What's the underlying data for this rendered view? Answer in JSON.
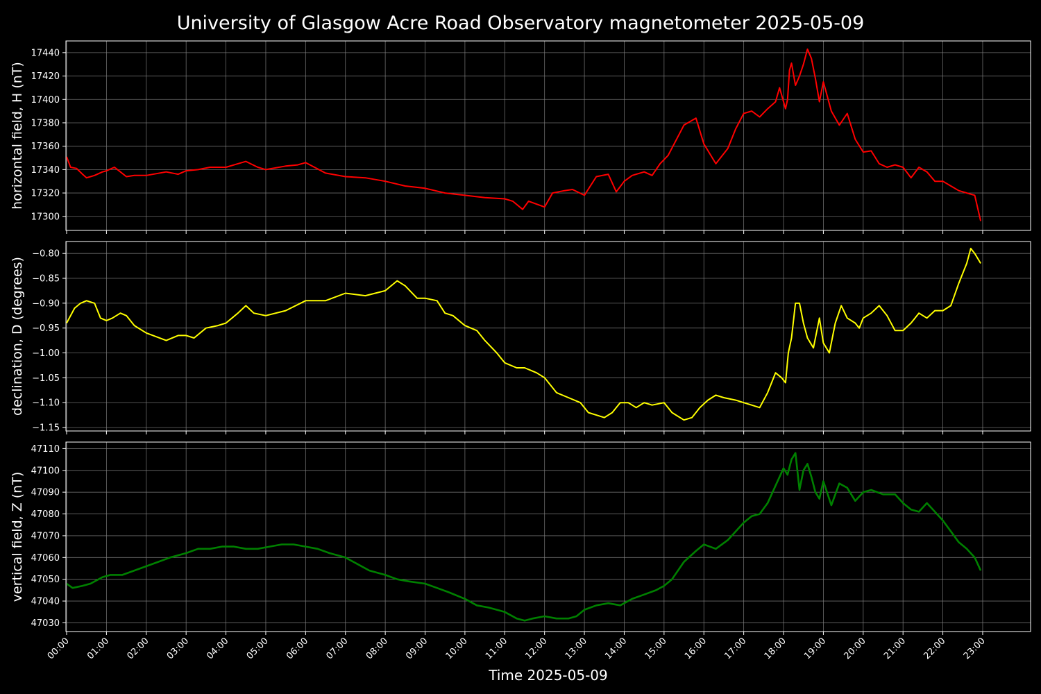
{
  "chart_data": {
    "type": "line",
    "title": "University of Glasgow Acre Road Observatory magnetometer 2025-05-09",
    "xlabel": "Time 2025-05-09",
    "x_tick_labels": [
      "00:00",
      "01:00",
      "02:00",
      "03:00",
      "04:00",
      "05:00",
      "06:00",
      "07:00",
      "08:00",
      "09:00",
      "10:00",
      "11:00",
      "12:00",
      "13:00",
      "14:00",
      "15:00",
      "16:00",
      "17:00",
      "18:00",
      "19:00",
      "20:00",
      "21:00",
      "22:00",
      "23:00"
    ],
    "xlim_hours": [
      0,
      24
    ],
    "background": "#000000",
    "grid": true,
    "panels": [
      {
        "ylabel": "horizontal field, H (nT)",
        "color": "#ff0000",
        "ylim": [
          17288,
          17450
        ],
        "yticks": [
          17300,
          17320,
          17340,
          17360,
          17380,
          17400,
          17420,
          17440
        ],
        "series": {
          "x_hours": [
            0,
            0.1,
            0.25,
            0.4,
            0.5,
            0.7,
            0.9,
            1.0,
            1.2,
            1.35,
            1.5,
            1.7,
            2.0,
            2.5,
            2.8,
            3.0,
            3.3,
            3.6,
            4.0,
            4.3,
            4.5,
            4.8,
            5.0,
            5.5,
            5.8,
            6.0,
            6.5,
            7.0,
            7.5,
            8.0,
            8.5,
            9.0,
            9.5,
            10.0,
            10.5,
            11.0,
            11.2,
            11.45,
            11.6,
            12.0,
            12.2,
            12.5,
            12.7,
            13.0,
            13.3,
            13.6,
            13.8,
            14.0,
            14.2,
            14.5,
            14.7,
            14.9,
            15.1,
            15.3,
            15.5,
            15.8,
            16.0,
            16.3,
            16.6,
            16.8,
            17.0,
            17.2,
            17.4,
            17.6,
            17.8,
            17.9,
            18.0,
            18.05,
            18.1,
            18.15,
            18.2,
            18.3,
            18.4,
            18.5,
            18.6,
            18.7,
            18.8,
            18.9,
            19.0,
            19.2,
            19.4,
            19.6,
            19.8,
            20.0,
            20.2,
            20.4,
            20.6,
            20.8,
            21.0,
            21.2,
            21.4,
            21.6,
            21.8,
            22.0,
            22.2,
            22.4,
            22.6,
            22.8,
            22.95
          ],
          "y": [
            17351,
            17342,
            17341,
            17336,
            17333,
            17335,
            17338,
            17339,
            17342,
            17338,
            17334,
            17335,
            17335,
            17338,
            17336,
            17339,
            17340,
            17342,
            17342,
            17345,
            17347,
            17342,
            17340,
            17343,
            17344,
            17346,
            17337,
            17334,
            17333,
            17330,
            17326,
            17324,
            17320,
            17318,
            17316,
            17315,
            17313,
            17306,
            17313,
            17308,
            17320,
            17322,
            17323,
            17318,
            17334,
            17336,
            17321,
            17330,
            17335,
            17338,
            17335,
            17345,
            17352,
            17365,
            17378,
            17384,
            17362,
            17345,
            17358,
            17375,
            17388,
            17390,
            17385,
            17392,
            17398,
            17410,
            17398,
            17392,
            17400,
            17425,
            17431,
            17412,
            17420,
            17430,
            17443,
            17435,
            17418,
            17398,
            17415,
            17390,
            17378,
            17388,
            17366,
            17355,
            17356,
            17345,
            17342,
            17344,
            17342,
            17333,
            17342,
            17338,
            17330,
            17330,
            17326,
            17322,
            17320,
            17318,
            17296
          ]
        }
      },
      {
        "ylabel": "declination, D (degrees)",
        "color": "#ffff00",
        "ylim": [
          -1.157,
          -0.776
        ],
        "yticks": [
          -1.15,
          -1.1,
          -1.05,
          -1.0,
          -0.95,
          -0.9,
          -0.85,
          -0.8
        ],
        "series": {
          "x_hours": [
            0,
            0.2,
            0.35,
            0.5,
            0.7,
            0.85,
            1.0,
            1.15,
            1.35,
            1.5,
            1.7,
            2.0,
            2.5,
            2.8,
            3.0,
            3.2,
            3.5,
            3.8,
            4.0,
            4.3,
            4.5,
            4.7,
            5.0,
            5.5,
            6.0,
            6.5,
            7.0,
            7.5,
            8.0,
            8.3,
            8.5,
            8.8,
            9.0,
            9.3,
            9.5,
            9.7,
            10.0,
            10.3,
            10.5,
            10.8,
            11.0,
            11.3,
            11.5,
            11.8,
            12.0,
            12.3,
            12.6,
            12.9,
            13.1,
            13.3,
            13.5,
            13.7,
            13.9,
            14.1,
            14.3,
            14.5,
            14.7,
            15.0,
            15.2,
            15.5,
            15.7,
            15.9,
            16.1,
            16.3,
            16.5,
            16.8,
            17.0,
            17.2,
            17.4,
            17.6,
            17.8,
            17.95,
            18.05,
            18.12,
            18.2,
            18.3,
            18.4,
            18.5,
            18.6,
            18.75,
            18.9,
            19.0,
            19.15,
            19.3,
            19.45,
            19.6,
            19.8,
            19.9,
            20.0,
            20.2,
            20.4,
            20.6,
            20.8,
            21.0,
            21.2,
            21.4,
            21.6,
            21.8,
            22.0,
            22.2,
            22.4,
            22.6,
            22.7,
            22.8,
            22.95
          ],
          "y": [
            -0.94,
            -0.91,
            -0.9,
            -0.895,
            -0.9,
            -0.93,
            -0.935,
            -0.93,
            -0.92,
            -0.925,
            -0.945,
            -0.96,
            -0.975,
            -0.965,
            -0.965,
            -0.97,
            -0.95,
            -0.945,
            -0.94,
            -0.92,
            -0.905,
            -0.92,
            -0.925,
            -0.915,
            -0.895,
            -0.895,
            -0.88,
            -0.885,
            -0.875,
            -0.855,
            -0.865,
            -0.89,
            -0.89,
            -0.895,
            -0.92,
            -0.925,
            -0.945,
            -0.955,
            -0.975,
            -1.0,
            -1.02,
            -1.03,
            -1.03,
            -1.04,
            -1.05,
            -1.08,
            -1.09,
            -1.1,
            -1.12,
            -1.125,
            -1.13,
            -1.12,
            -1.1,
            -1.1,
            -1.11,
            -1.1,
            -1.105,
            -1.1,
            -1.12,
            -1.135,
            -1.13,
            -1.11,
            -1.095,
            -1.085,
            -1.09,
            -1.095,
            -1.1,
            -1.105,
            -1.11,
            -1.08,
            -1.04,
            -1.05,
            -1.06,
            -1.0,
            -0.97,
            -0.9,
            -0.9,
            -0.94,
            -0.97,
            -0.99,
            -0.93,
            -0.98,
            -1.0,
            -0.94,
            -0.905,
            -0.93,
            -0.94,
            -0.95,
            -0.93,
            -0.92,
            -0.905,
            -0.925,
            -0.955,
            -0.955,
            -0.94,
            -0.92,
            -0.93,
            -0.915,
            -0.915,
            -0.905,
            -0.86,
            -0.82,
            -0.79,
            -0.8,
            -0.82
          ]
        }
      },
      {
        "ylabel": "vertical field, Z (nT)",
        "color": "#008000",
        "ylim": [
          47026,
          47113
        ],
        "yticks": [
          47030,
          47040,
          47050,
          47060,
          47070,
          47080,
          47090,
          47100,
          47110
        ],
        "series": {
          "x_hours": [
            0,
            0.15,
            0.4,
            0.6,
            0.9,
            1.1,
            1.4,
            1.7,
            2.0,
            2.3,
            2.6,
            3.0,
            3.3,
            3.6,
            3.9,
            4.2,
            4.5,
            4.8,
            5.1,
            5.4,
            5.7,
            6.0,
            6.3,
            6.6,
            7.0,
            7.3,
            7.6,
            8.0,
            8.3,
            8.6,
            9.0,
            9.3,
            9.6,
            10.0,
            10.3,
            10.6,
            11.0,
            11.3,
            11.5,
            11.7,
            12.0,
            12.3,
            12.6,
            12.8,
            13.0,
            13.3,
            13.6,
            13.9,
            14.2,
            14.5,
            14.8,
            15.0,
            15.2,
            15.5,
            15.8,
            16.0,
            16.3,
            16.6,
            17.0,
            17.2,
            17.4,
            17.6,
            17.8,
            18.0,
            18.1,
            18.2,
            18.3,
            18.4,
            18.5,
            18.6,
            18.7,
            18.8,
            18.9,
            19.0,
            19.2,
            19.4,
            19.6,
            19.8,
            20.0,
            20.2,
            20.5,
            20.8,
            21.0,
            21.2,
            21.4,
            21.6,
            21.8,
            22.0,
            22.2,
            22.4,
            22.6,
            22.8,
            22.95
          ],
          "y": [
            47048,
            47046,
            47047,
            47048,
            47051,
            47052,
            47052,
            47054,
            47056,
            47058,
            47060,
            47062,
            47064,
            47064,
            47065,
            47065,
            47064,
            47064,
            47065,
            47066,
            47066,
            47065,
            47064,
            47062,
            47060,
            47057,
            47054,
            47052,
            47050,
            47049,
            47048,
            47046,
            47044,
            47041,
            47038,
            47037,
            47035,
            47032,
            47031,
            47032,
            47033,
            47032,
            47032,
            47033,
            47036,
            47038,
            47039,
            47038,
            47041,
            47043,
            47045,
            47047,
            47050,
            47058,
            47063,
            47066,
            47064,
            47068,
            47076,
            47079,
            47080,
            47085,
            47093,
            47101,
            47098,
            47105,
            47108,
            47091,
            47100,
            47103,
            47097,
            47090,
            47087,
            47095,
            47084,
            47094,
            47092,
            47086,
            47090,
            47091,
            47089,
            47089,
            47085,
            47082,
            47081,
            47085,
            47081,
            47077,
            47072,
            47067,
            47064,
            47060,
            47054
          ]
        }
      }
    ]
  }
}
